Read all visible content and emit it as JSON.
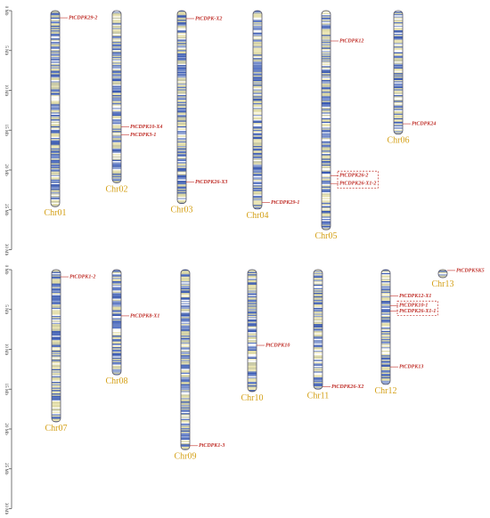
{
  "panels": [
    {
      "scale": {
        "ticks": [
          {
            "value": 0,
            "label": "0 Mb"
          },
          {
            "value": 5,
            "label": "5 Mb"
          },
          {
            "value": 10,
            "label": "10 Mb"
          },
          {
            "value": 15,
            "label": "15 Mb"
          },
          {
            "value": 20,
            "label": "20 Mb"
          },
          {
            "value": 25,
            "label": "25 Mb"
          },
          {
            "value": 30,
            "label": "30 Mb"
          }
        ]
      },
      "chromosomes": [
        {
          "name": "Chr01",
          "length": 24.6,
          "genes": [
            {
              "name": "PtCDPK29-2",
              "position": 0.9
            }
          ]
        },
        {
          "name": "Chr02",
          "length": 21.6,
          "genes": [
            {
              "name": "PtCDPK10-X4",
              "position": 14.6
            },
            {
              "name": "PtCDPK3-1",
              "position": 15.6
            }
          ]
        },
        {
          "name": "Chr03",
          "length": 24.2,
          "genes": [
            {
              "name": "PtCDPK-X2",
              "position": 1.0
            },
            {
              "name": "PtCDPK26-X3",
              "position": 21.5
            }
          ]
        },
        {
          "name": "Chr04",
          "length": 24.9,
          "genes": [
            {
              "name": "PtCDPK29-1",
              "position": 24.1
            }
          ]
        },
        {
          "name": "Chr05",
          "length": 27.5,
          "genes": [
            {
              "name": "PtCDPK12",
              "position": 3.8
            },
            {
              "name": "PtCDPK26-2",
              "position": 20.7,
              "boxed": true
            },
            {
              "name": "PtCDPK26-X1-2",
              "position": 21.7,
              "boxed": true
            }
          ]
        },
        {
          "name": "Chr06",
          "length": 15.5,
          "genes": [
            {
              "name": "PtCDPK24",
              "position": 14.2
            }
          ]
        }
      ]
    },
    {
      "scale": {
        "ticks": [
          {
            "value": 0,
            "label": "0 Mb"
          },
          {
            "value": 5,
            "label": "5 Mb"
          },
          {
            "value": 10,
            "label": "10 Mb"
          },
          {
            "value": 15,
            "label": "15 Mb"
          },
          {
            "value": 20,
            "label": "20 Mb"
          },
          {
            "value": 25,
            "label": "25 Mb"
          },
          {
            "value": 30,
            "label": "30 Mb"
          }
        ]
      },
      "chromosomes": [
        {
          "name": "Chr07",
          "length": 19.1,
          "genes": [
            {
              "name": "PtCDPK1-2",
              "position": 0.9
            }
          ]
        },
        {
          "name": "Chr08",
          "length": 13.2,
          "genes": [
            {
              "name": "PtCDPK8-X1",
              "position": 5.8
            }
          ]
        },
        {
          "name": "Chr09",
          "length": 22.6,
          "genes": [
            {
              "name": "PtCDPK1-3",
              "position": 22.1
            }
          ]
        },
        {
          "name": "Chr10",
          "length": 15.3,
          "genes": [
            {
              "name": "PtCDPK10",
              "position": 9.5
            }
          ]
        },
        {
          "name": "Chr11",
          "length": 15.0,
          "genes": [
            {
              "name": "PtCDPK26-X2",
              "position": 14.7
            }
          ]
        },
        {
          "name": "Chr12",
          "length": 14.4,
          "genes": [
            {
              "name": "PtCDPK12-X1",
              "position": 3.3
            },
            {
              "name": "PtCDPK10-1",
              "position": 4.5,
              "boxed": true
            },
            {
              "name": "PtCDPK26-X1-1",
              "position": 5.2,
              "boxed": true
            },
            {
              "name": "PtCDPK13",
              "position": 12.2
            }
          ]
        },
        {
          "name": "Chr13",
          "length": 1.0,
          "genes": [
            {
              "name": "PtCDPKSK5",
              "position": 0.1
            }
          ]
        }
      ]
    }
  ]
}
